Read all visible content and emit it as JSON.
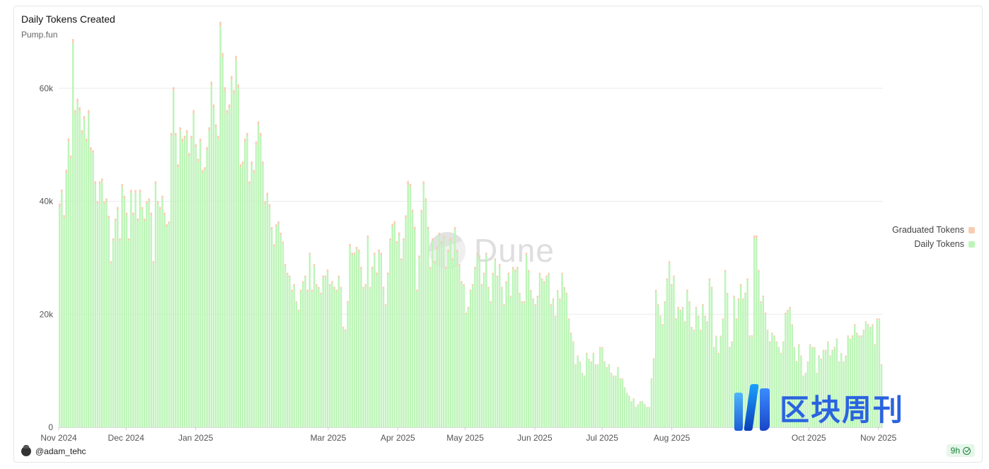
{
  "title": "Daily Tokens Created",
  "subtitle": "Pump.fun",
  "author": "@adam_tehc",
  "age_badge": "9h",
  "watermark": "Dune",
  "brand_watermark": "区块周刊",
  "icons": {
    "avatar": "user-avatar-icon",
    "badge": "check-circle-icon",
    "dune": "dune-logo-icon",
    "brand": "brand-logo-icon"
  },
  "colors": {
    "daily": "#bdf5b8",
    "graduated": "#f7cdb2",
    "grid": "#ececec",
    "axis_text": "#555555"
  },
  "chart_data": {
    "type": "bar",
    "stacked": true,
    "title": "Daily Tokens Created",
    "subtitle": "Pump.fun",
    "xlabel": "",
    "ylabel": "",
    "ylim": [
      0,
      72000
    ],
    "yticks": [
      0,
      20000,
      40000,
      60000
    ],
    "ytick_labels": [
      "0",
      "20k",
      "40k",
      "60k"
    ],
    "x_start": "2024-11-01",
    "x_end": "2025-11-03",
    "xtick_labels": [
      "Nov 2024",
      "Dec 2024",
      "Jan 2025",
      "Mar 2025",
      "Apr 2025",
      "May 2025",
      "Jun 2025",
      "Jul 2025",
      "Aug 2025",
      "Oct 2025",
      "Nov 2025"
    ],
    "legend": {
      "position": "right",
      "entries": [
        "Graduated Tokens",
        "Daily Tokens"
      ]
    },
    "grid": true,
    "series": [
      {
        "name": "Daily Tokens",
        "color": "#bdf5b8",
        "values": [
          39000,
          41500,
          37000,
          45000,
          50500,
          47500,
          68000,
          55500,
          57500,
          56000,
          52000,
          54500,
          50500,
          55500,
          49000,
          48500,
          43000,
          39500,
          43000,
          43500,
          39500,
          40000,
          37000,
          29000,
          33000,
          36500,
          38500,
          33000,
          42500,
          40500,
          37500,
          33000,
          41500,
          37500,
          41500,
          36500,
          41500,
          38500,
          36500,
          39500,
          40000,
          37500,
          29000,
          43000,
          39500,
          38500,
          40500,
          37500,
          35500,
          36000,
          51500,
          59500,
          51500,
          46000,
          52500,
          50500,
          51000,
          52000,
          48000,
          51000,
          55500,
          49500,
          47000,
          50500,
          45000,
          45500,
          49000,
          52500,
          60500,
          56500,
          53000,
          51000,
          71000,
          65500,
          59500,
          55500,
          56500,
          61500,
          59000,
          65000,
          60000,
          46000,
          46500,
          50500,
          51500,
          43000,
          46500,
          45000,
          50000,
          53500,
          51500,
          46500,
          39500,
          41000,
          39000,
          35000,
          32000,
          35500,
          36000,
          34000,
          32500,
          28500,
          27000,
          26500,
          24000,
          25000,
          22000,
          20500,
          24000,
          25500,
          26500,
          24000,
          30500,
          24000,
          28500,
          25000,
          24500,
          23500,
          26500,
          26500,
          27500,
          25000,
          25500,
          24500,
          24000,
          26500,
          24500,
          17500,
          17000,
          22000,
          32000,
          30500,
          30500,
          31500,
          31000,
          28000,
          24500,
          25000,
          33500,
          24500,
          28000,
          30500,
          27000,
          31000,
          30500,
          24500,
          21500,
          27000,
          33000,
          35500,
          36000,
          32500,
          34000,
          29500,
          33000,
          37000,
          43000,
          42500,
          38000,
          35000,
          24000,
          30000,
          38000,
          43000,
          40000,
          35000,
          28000,
          33000,
          29000,
          31500,
          34000,
          32500,
          33500,
          28000,
          31000,
          33000,
          29500,
          35000,
          31000,
          28500,
          25500,
          25000,
          20000,
          21000,
          24000,
          25000,
          28000,
          30500,
          30000,
          25000,
          27000,
          30500,
          24500,
          22000,
          27000,
          29500,
          26500,
          28500,
          24500,
          21500,
          25500,
          27000,
          23000,
          28000,
          27500,
          28000,
          23500,
          22000,
          22000,
          30500,
          27500,
          24000,
          22500,
          21500,
          23000,
          27000,
          26000,
          25500,
          26500,
          27000,
          21500,
          22500,
          19500,
          24000,
          22500,
          27000,
          24500,
          23500,
          19000,
          16500,
          15000,
          11000,
          12500,
          11500,
          9500,
          9000,
          13000,
          12000,
          11500,
          13000,
          11000,
          11000,
          14000,
          14000,
          11500,
          10500,
          11000,
          9500,
          9000,
          9000,
          10500,
          8500,
          8500,
          7000,
          6000,
          5500,
          4500,
          5000,
          3500,
          4000,
          4500,
          4500,
          4000,
          3500,
          3500,
          8500,
          12000,
          24000,
          21500,
          19500,
          18000,
          22000,
          26000,
          29000,
          25000,
          26500,
          19000,
          21000,
          20500,
          21000,
          18500,
          24000,
          22000,
          17500,
          17000,
          21000,
          19500,
          17000,
          21500,
          19500,
          18500,
          26000,
          24500,
          14000,
          16000,
          13000,
          16000,
          19000,
          27500,
          23500,
          14000,
          15000,
          23000,
          19000,
          22500,
          25000,
          22500,
          23500,
          26000,
          16000,
          16000,
          33500,
          33500,
          27500,
          22000,
          23000,
          20000,
          17000,
          15000,
          16500,
          16000,
          15000,
          14000,
          13000,
          15000,
          20000,
          20500,
          21000,
          18000,
          14000,
          11500,
          14500,
          12500,
          9000,
          9500,
          11500,
          14500,
          14000,
          14000,
          9500,
          12500,
          12000,
          13500,
          13500,
          15000,
          12500,
          13500,
          14000,
          15500,
          11500,
          13000,
          11500,
          12500,
          16000,
          15500,
          16000,
          18000,
          16500,
          16000,
          16000,
          17000,
          18500,
          18000,
          17500,
          18000,
          14500,
          19000,
          19000,
          11000
        ]
      },
      {
        "name": "Graduated Tokens",
        "color": "#f7cdb2",
        "values": [
          600,
          600,
          550,
          600,
          650,
          600,
          750,
          650,
          650,
          650,
          600,
          600,
          600,
          650,
          600,
          550,
          550,
          500,
          550,
          550,
          500,
          500,
          450,
          400,
          450,
          450,
          500,
          450,
          550,
          500,
          500,
          450,
          550,
          500,
          500,
          450,
          550,
          500,
          450,
          500,
          500,
          500,
          400,
          550,
          500,
          500,
          500,
          500,
          450,
          450,
          600,
          700,
          600,
          550,
          600,
          600,
          600,
          600,
          550,
          600,
          650,
          600,
          550,
          600,
          550,
          550,
          600,
          600,
          700,
          650,
          600,
          600,
          800,
          750,
          700,
          650,
          650,
          700,
          700,
          750,
          700,
          550,
          550,
          600,
          600,
          550,
          550,
          550,
          600,
          650,
          600,
          550,
          500,
          500,
          500,
          450,
          400,
          450,
          450,
          450,
          400,
          400,
          350,
          350,
          350,
          350,
          300,
          300,
          350,
          350,
          350,
          350,
          400,
          350,
          400,
          350,
          350,
          350,
          350,
          350,
          400,
          350,
          350,
          350,
          350,
          350,
          350,
          300,
          300,
          350,
          450,
          400,
          400,
          450,
          450,
          400,
          350,
          350,
          450,
          350,
          400,
          400,
          400,
          450,
          400,
          350,
          300,
          400,
          450,
          500,
          500,
          450,
          500,
          400,
          450,
          500,
          600,
          600,
          500,
          500,
          350,
          400,
          500,
          550,
          550,
          500,
          400,
          450,
          400,
          450,
          450,
          450,
          450,
          400,
          400,
          450,
          400,
          450,
          400,
          400,
          350,
          350,
          300,
          300,
          350,
          350,
          400,
          400,
          400,
          350,
          350,
          400,
          350,
          300,
          350,
          400,
          350,
          400,
          350,
          300,
          350,
          350,
          300,
          400,
          400,
          400,
          300,
          300,
          300,
          400,
          350,
          300,
          300,
          300,
          300,
          350,
          350,
          350,
          350,
          350,
          300,
          300,
          250,
          300,
          300,
          350,
          300,
          300,
          250,
          250,
          200,
          150,
          200,
          150,
          150,
          150,
          200,
          150,
          150,
          200,
          150,
          150,
          200,
          200,
          150,
          150,
          150,
          150,
          150,
          150,
          150,
          150,
          150,
          100,
          100,
          100,
          100,
          100,
          100,
          100,
          100,
          100,
          100,
          100,
          100,
          150,
          200,
          350,
          300,
          300,
          250,
          300,
          350,
          400,
          350,
          350,
          300,
          300,
          300,
          300,
          250,
          350,
          300,
          250,
          250,
          300,
          250,
          250,
          300,
          250,
          250,
          350,
          350,
          200,
          200,
          200,
          200,
          250,
          350,
          300,
          200,
          200,
          300,
          250,
          300,
          350,
          300,
          300,
          350,
          250,
          250,
          450,
          450,
          350,
          300,
          300,
          300,
          250,
          200,
          250,
          250,
          200,
          200,
          200,
          200,
          300,
          300,
          300,
          250,
          200,
          200,
          200,
          200,
          150,
          150,
          150,
          200,
          200,
          200,
          150,
          200,
          150,
          200,
          200,
          200,
          200,
          200,
          200,
          200,
          150,
          150,
          150,
          200,
          250,
          200,
          250,
          250,
          250,
          250,
          250,
          250,
          250,
          250,
          250,
          250,
          200,
          250,
          250,
          150
        ]
      }
    ]
  }
}
